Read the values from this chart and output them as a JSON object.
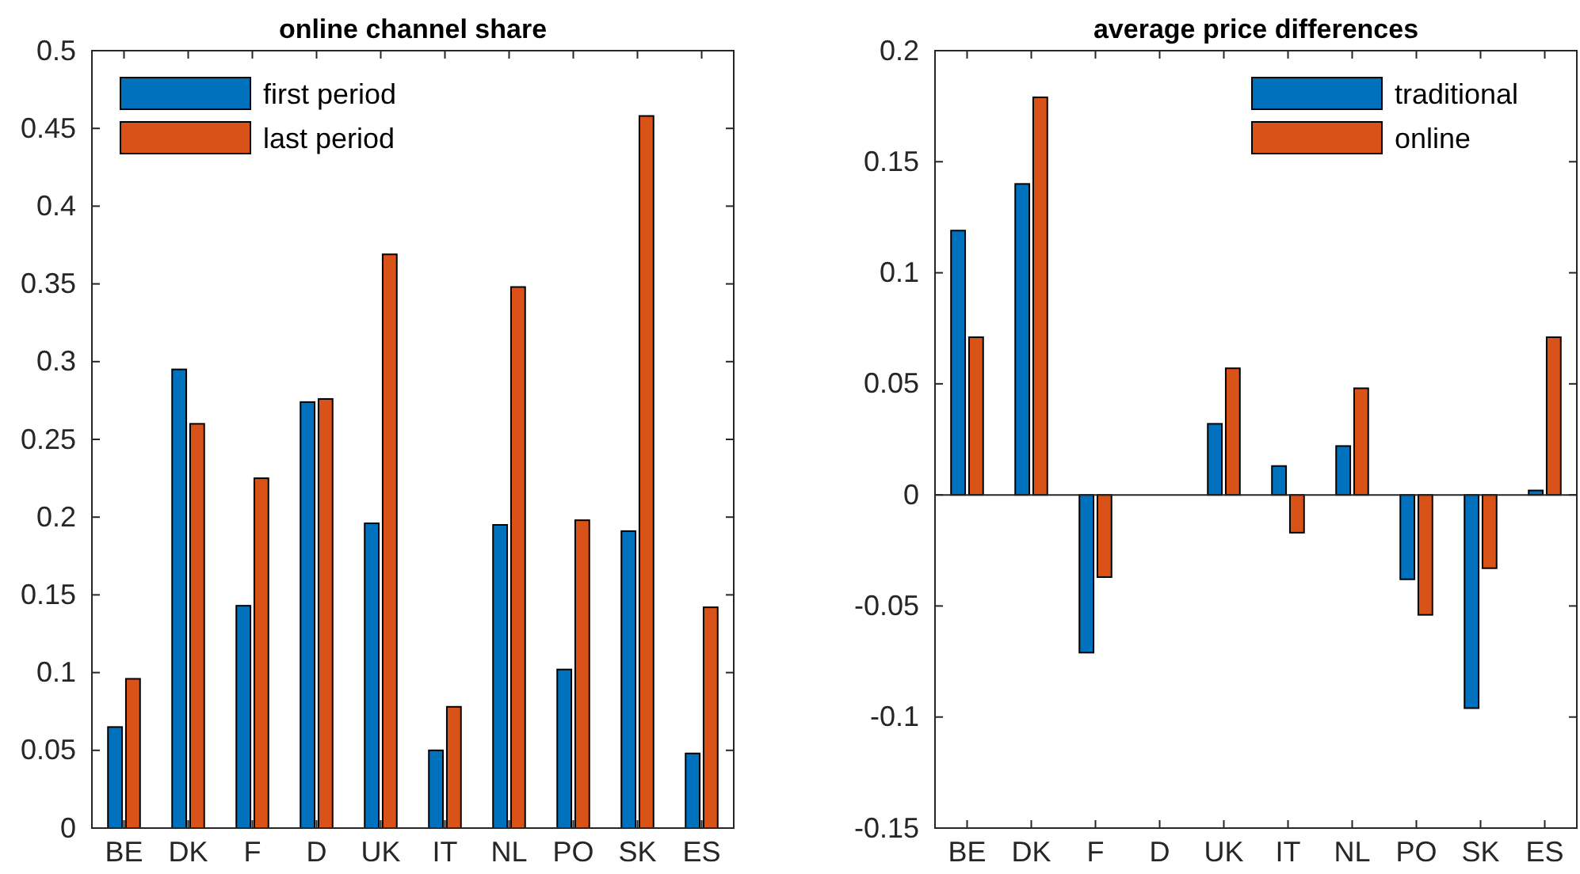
{
  "chart_data": [
    {
      "type": "bar",
      "title": "online channel share",
      "categories": [
        "BE",
        "DK",
        "F",
        "D",
        "UK",
        "IT",
        "NL",
        "PO",
        "SK",
        "ES"
      ],
      "series": [
        {
          "name": "first period",
          "color": "#0072bd",
          "values": [
            0.065,
            0.295,
            0.143,
            0.274,
            0.196,
            0.05,
            0.195,
            0.102,
            0.191,
            0.048
          ]
        },
        {
          "name": "last period",
          "color": "#d95319",
          "values": [
            0.096,
            0.26,
            0.225,
            0.276,
            0.369,
            0.078,
            0.348,
            0.198,
            0.458,
            0.142
          ]
        }
      ],
      "ylim": [
        0,
        0.5
      ],
      "yticks": [
        0,
        0.05,
        0.1,
        0.15,
        0.2,
        0.25,
        0.3,
        0.35,
        0.4,
        0.45,
        0.5
      ],
      "legend": "top left"
    },
    {
      "type": "bar",
      "title": "average price differences",
      "categories": [
        "BE",
        "DK",
        "F",
        "D",
        "UK",
        "IT",
        "NL",
        "PO",
        "SK",
        "ES"
      ],
      "series": [
        {
          "name": "traditional",
          "color": "#0072bd",
          "values": [
            0.119,
            0.14,
            -0.071,
            0,
            0.032,
            0.013,
            0.022,
            -0.038,
            -0.096,
            0.002
          ]
        },
        {
          "name": "online",
          "color": "#d95319",
          "values": [
            0.071,
            0.179,
            -0.037,
            0,
            0.057,
            -0.017,
            0.048,
            -0.054,
            -0.033,
            0.071
          ]
        }
      ],
      "ylim": [
        -0.15,
        0.2
      ],
      "yticks": [
        -0.15,
        -0.1,
        -0.05,
        0,
        0.05,
        0.1,
        0.15,
        0.2
      ],
      "legend": "top right"
    }
  ]
}
